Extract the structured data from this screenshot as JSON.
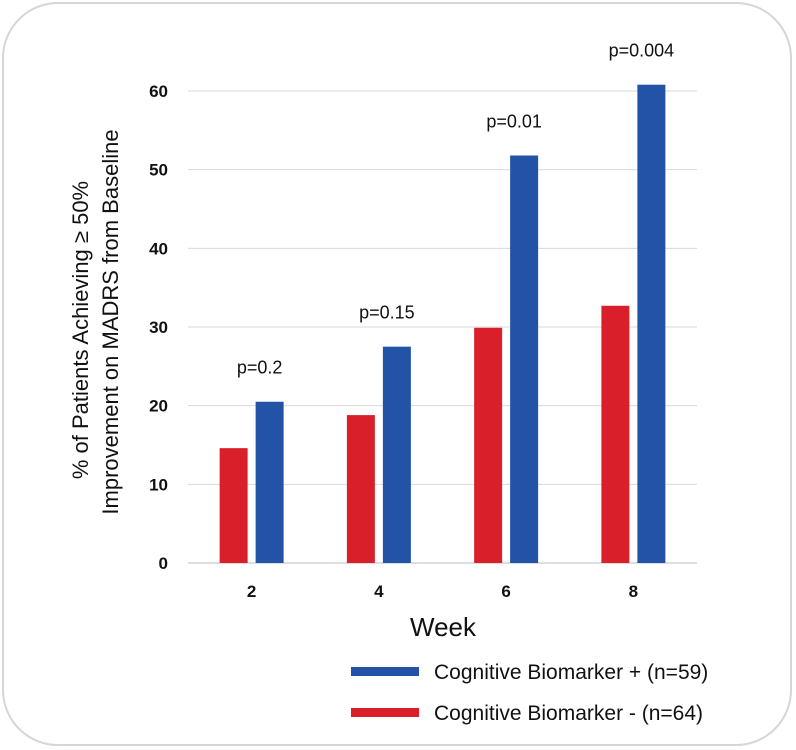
{
  "chart_data": {
    "type": "bar",
    "categories": [
      "2",
      "4",
      "6",
      "8"
    ],
    "series": [
      {
        "name": "Cognitive Biomarker - (n=64)",
        "color": "#d9202a",
        "values": [
          14.6,
          18.8,
          29.9,
          32.7
        ]
      },
      {
        "name": "Cognitive Biomarker + (n=59)",
        "color": "#2353a6",
        "values": [
          20.5,
          27.5,
          51.8,
          60.8
        ]
      }
    ],
    "annotations": [
      "p=0.2",
      "p=0.15",
      "p=0.01",
      "p=0.004"
    ],
    "xlabel": "Week",
    "ylabel_line1": "% of Patients Achieving ≥ 50%",
    "ylabel_line2": "Improvement on MADRS from Baseline",
    "ylim": [
      0,
      60
    ],
    "yticks": [
      0,
      10,
      20,
      30,
      40,
      50,
      60
    ],
    "grid": true,
    "legend_position": "bottom-right",
    "legend_order": [
      1,
      0
    ]
  }
}
